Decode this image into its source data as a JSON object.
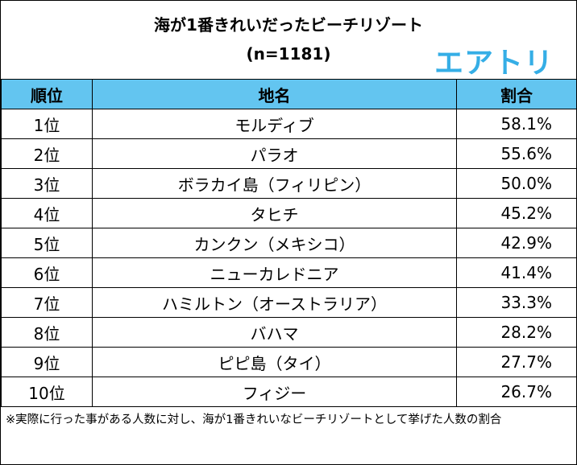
{
  "header": {
    "title": "海が1番きれいだったビーチリゾート",
    "subtitle": "(n=1181)",
    "logo_text": "エアトリ",
    "logo_color": "#35aee6"
  },
  "table": {
    "header_color": "#63c5f0",
    "columns": [
      "順位",
      "地名",
      "割合"
    ],
    "rows": [
      {
        "rank": "1位",
        "name": "モルディブ",
        "pct": "58.1%"
      },
      {
        "rank": "2位",
        "name": "パラオ",
        "pct": "55.6%"
      },
      {
        "rank": "3位",
        "name": "ボラカイ島（フィリピン）",
        "pct": "50.0%"
      },
      {
        "rank": "4位",
        "name": "タヒチ",
        "pct": "45.2%"
      },
      {
        "rank": "5位",
        "name": "カンクン（メキシコ）",
        "pct": "42.9%"
      },
      {
        "rank": "6位",
        "name": "ニューカレドニア",
        "pct": "41.4%"
      },
      {
        "rank": "7位",
        "name": "ハミルトン（オーストラリア）",
        "pct": "33.3%"
      },
      {
        "rank": "8位",
        "name": "バハマ",
        "pct": "28.2%"
      },
      {
        "rank": "9位",
        "name": "ピピ島（タイ）",
        "pct": "27.7%"
      },
      {
        "rank": "10位",
        "name": "フィジー",
        "pct": "26.7%"
      }
    ]
  },
  "footnote": "※実際に行った事がある人数に対し、海が1番きれいなビーチリゾートとして挙げた人数の割合"
}
